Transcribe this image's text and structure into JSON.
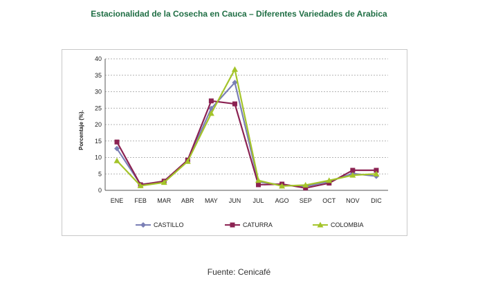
{
  "title": "Estacionalidad de la Cosecha en Cauca – Diferentes Variedades de Arabica",
  "source": "Fuente: Cenicafé",
  "chart_data": {
    "type": "line",
    "title": "Estacionalidad de la Cosecha en Cauca – Diferentes Variedades de Arabica",
    "xlabel": "",
    "ylabel": "Porcentaje (%).",
    "ylim": [
      0,
      40
    ],
    "yticks": [
      "0",
      "5",
      "10",
      "15",
      "20",
      "25",
      "30",
      "35",
      "40"
    ],
    "grid": true,
    "legend_position": "bottom",
    "categories": [
      "ENE",
      "FEB",
      "MAR",
      "ABR",
      "MAY",
      "JUN",
      "JUL",
      "AGO",
      "SEP",
      "OCT",
      "NOV",
      "DIC"
    ],
    "series": [
      {
        "name": "CASTILLO",
        "color": "#7a7fb5",
        "marker": "diamond",
        "values": [
          12.7,
          1.8,
          2.6,
          9.0,
          24.9,
          32.8,
          2.6,
          1.6,
          1.2,
          2.7,
          5.1,
          4.3
        ]
      },
      {
        "name": "CATURRA",
        "color": "#8b2252",
        "marker": "square",
        "values": [
          14.7,
          1.7,
          2.8,
          9.2,
          27.2,
          26.3,
          1.7,
          1.9,
          0.7,
          2.2,
          6.1,
          6.1
        ]
      },
      {
        "name": "COLOMBIA",
        "color": "#a4c42a",
        "marker": "triangle",
        "values": [
          9.0,
          1.4,
          2.4,
          8.8,
          23.4,
          36.8,
          3.0,
          1.3,
          1.6,
          3.0,
          4.6,
          5.0
        ]
      }
    ]
  }
}
